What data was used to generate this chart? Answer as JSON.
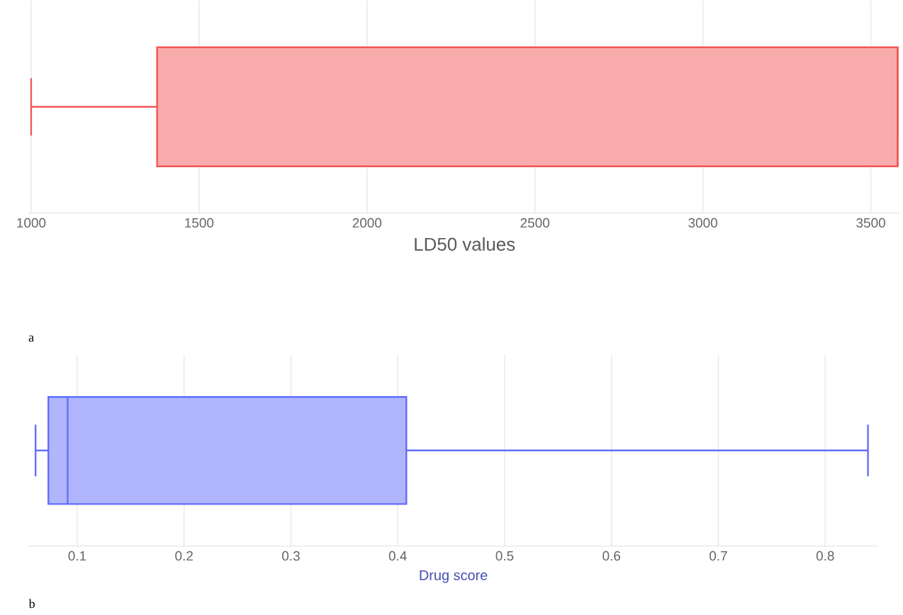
{
  "chart_data": [
    {
      "type": "box",
      "orientation": "horizontal",
      "xlabel": "LD50 values",
      "categories": [
        null
      ],
      "color": "#f25757",
      "boxes": [
        {
          "low": 1000,
          "q1": 1375,
          "median": 3580,
          "q3": 3580,
          "high": 3580
        }
      ],
      "xlim": [
        990,
        3590
      ],
      "xticks": [
        1000,
        1500,
        2000,
        2500,
        3000,
        3500
      ],
      "grid": "x",
      "annotations": [
        "a"
      ]
    },
    {
      "type": "box",
      "orientation": "horizontal",
      "xlabel": "Drug score",
      "categories": [
        null
      ],
      "color": "#636efa",
      "boxes": [
        {
          "low": 0.061,
          "q1": 0.073,
          "median": 0.091,
          "q3": 0.408,
          "high": 0.84
        }
      ],
      "xlim": [
        0.054,
        0.85
      ],
      "xticks": [
        0.1,
        0.2,
        0.3,
        0.4,
        0.5,
        0.6,
        0.7,
        0.8
      ],
      "grid": "x",
      "annotations": [
        "b"
      ]
    }
  ]
}
